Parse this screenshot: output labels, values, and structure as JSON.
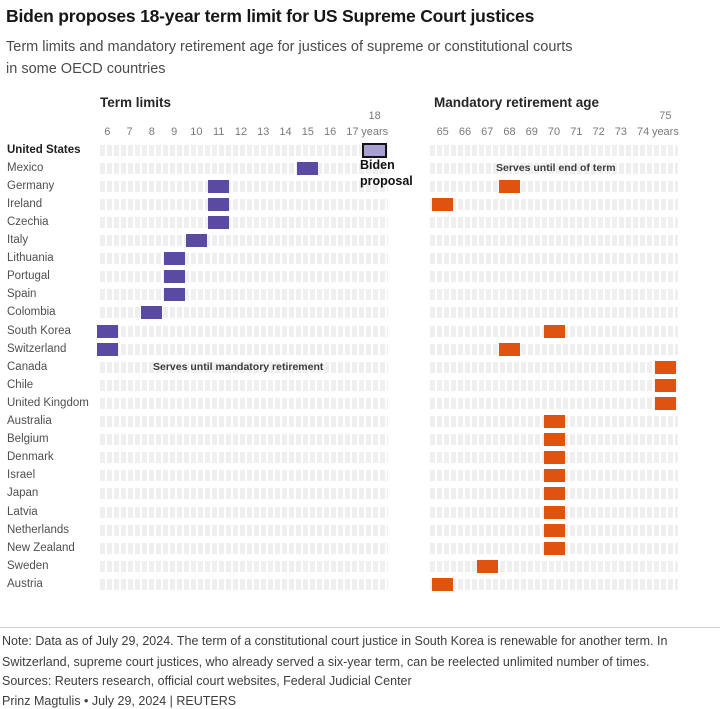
{
  "header": {
    "title": "Biden proposes 18-year term limit for US Supreme Court justices",
    "subtitle_line1": "Term limits and mandatory retirement age for justices of supreme or constitutional courts",
    "subtitle_line2": "in some OECD countries"
  },
  "chart_data": {
    "type": "bar",
    "title": "Term limits and mandatory retirement age for justices of supreme or constitutional courts in some OECD countries",
    "panels": [
      {
        "id": "term_limits",
        "title": "Term limits",
        "unit": "years",
        "axis_ticks": [
          6,
          7,
          8,
          9,
          10,
          11,
          12,
          13,
          14,
          15,
          16,
          17,
          18
        ],
        "axis_range": [
          6,
          18
        ]
      },
      {
        "id": "retirement_age",
        "title": "Mandatory retirement age",
        "unit": "years",
        "axis_ticks": [
          65,
          66,
          67,
          68,
          69,
          70,
          71,
          72,
          73,
          74,
          75
        ],
        "axis_range": [
          65,
          75
        ]
      }
    ],
    "legend": {
      "proposal_label": "Biden proposal"
    },
    "rows": [
      {
        "country": "United States",
        "bold": true,
        "term_limit": 18,
        "term_style": "proposal",
        "retirement_age": null
      },
      {
        "country": "Mexico",
        "term_limit": 15,
        "retirement_age": null,
        "retirement_note": "Serves until end of term"
      },
      {
        "country": "Germany",
        "term_limit": 11,
        "retirement_age": 68
      },
      {
        "country": "Ireland",
        "term_limit": 11,
        "retirement_age": 65
      },
      {
        "country": "Czechia",
        "term_limit": 11,
        "retirement_age": null
      },
      {
        "country": "Italy",
        "term_limit": 10,
        "retirement_age": null
      },
      {
        "country": "Lithuania",
        "term_limit": 9,
        "retirement_age": null
      },
      {
        "country": "Portugal",
        "term_limit": 9,
        "retirement_age": null
      },
      {
        "country": "Spain",
        "term_limit": 9,
        "retirement_age": null
      },
      {
        "country": "Colombia",
        "term_limit": 8,
        "retirement_age": null
      },
      {
        "country": "South Korea",
        "term_limit": 6,
        "retirement_age": 70
      },
      {
        "country": "Switzerland",
        "term_limit": 6,
        "retirement_age": 68
      },
      {
        "country": "Canada",
        "term_limit": null,
        "term_note": "Serves until mandatory retirement",
        "retirement_age": 75
      },
      {
        "country": "Chile",
        "term_limit": null,
        "retirement_age": 75
      },
      {
        "country": "United Kingdom",
        "term_limit": null,
        "retirement_age": 75
      },
      {
        "country": "Australia",
        "term_limit": null,
        "retirement_age": 70
      },
      {
        "country": "Belgium",
        "term_limit": null,
        "retirement_age": 70
      },
      {
        "country": "Denmark",
        "term_limit": null,
        "retirement_age": 70
      },
      {
        "country": "Israel",
        "term_limit": null,
        "retirement_age": 70
      },
      {
        "country": "Japan",
        "term_limit": null,
        "retirement_age": 70
      },
      {
        "country": "Latvia",
        "term_limit": null,
        "retirement_age": 70
      },
      {
        "country": "Netherlands",
        "term_limit": null,
        "retirement_age": 70
      },
      {
        "country": "New Zealand",
        "term_limit": null,
        "retirement_age": 70
      },
      {
        "country": "Sweden",
        "term_limit": null,
        "retirement_age": 67
      },
      {
        "country": "Austria",
        "term_limit": null,
        "retirement_age": 65
      }
    ],
    "colors": {
      "term_bar": "#5b4aa1",
      "proposal_fill": "#a89fd3",
      "proposal_border": "#141414",
      "retirement_bar": "#e0530e",
      "row_stripe": "#efeff0"
    }
  },
  "footer": {
    "note_line1": "Note: Data as of July 29, 2024. The term of a constitutional court justice in South Korea is renewable for another term. In",
    "note_line2": "Switzerland, supreme court justices, who already served a six-year term, can be reelected unlimited number of times.",
    "sources": "Sources: Reuters research, official court websites, Federal Judicial Center",
    "byline": "Prinz Magtulis • July 29, 2024 | REUTERS"
  }
}
